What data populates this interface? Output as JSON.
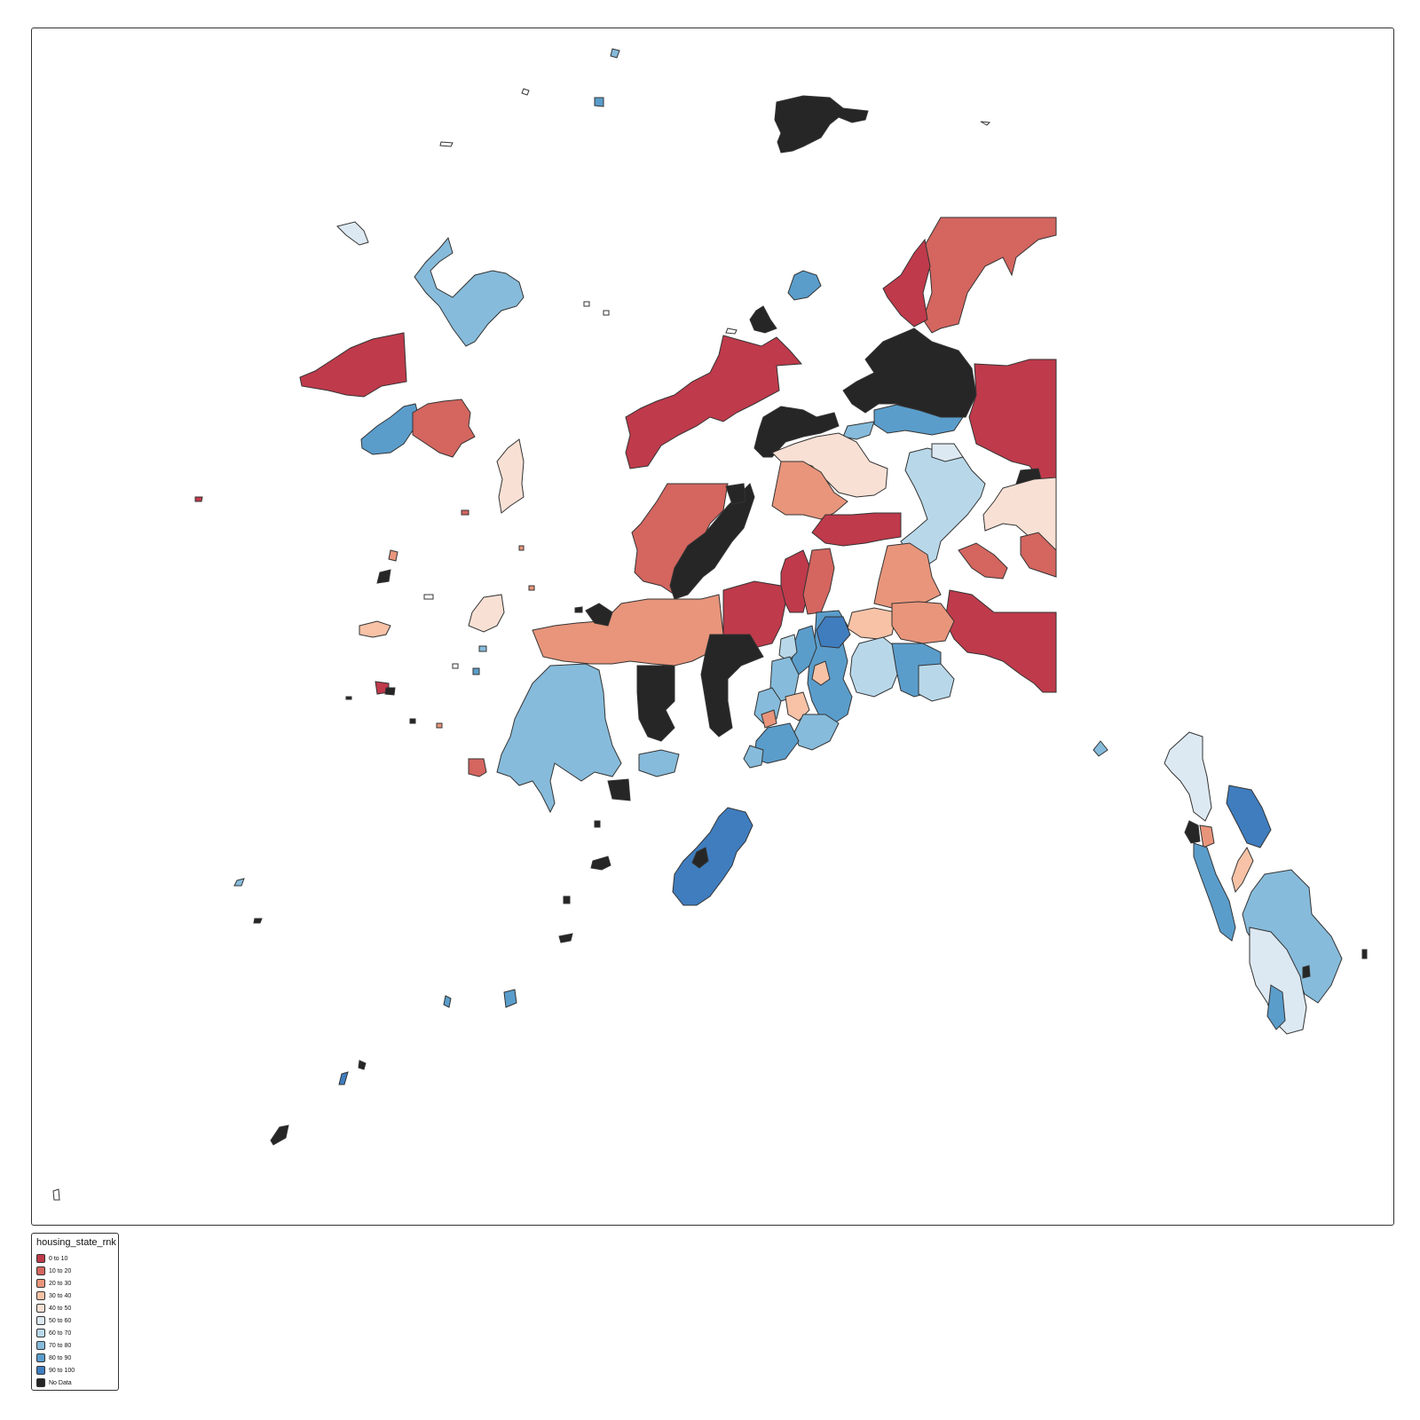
{
  "map": {
    "legend_title": "housing_state_rnk",
    "no_data_color": "#262626",
    "legend": [
      {
        "label": "0 to 10",
        "color": "#bf3a4b"
      },
      {
        "label": "10 to 20",
        "color": "#d4655f"
      },
      {
        "label": "20 to 30",
        "color": "#e8957b"
      },
      {
        "label": "30 to 40",
        "color": "#f7c2a6"
      },
      {
        "label": "40 to 50",
        "color": "#f9e0d4"
      },
      {
        "label": "50 to 60",
        "color": "#dde9f2"
      },
      {
        "label": "60 to 70",
        "color": "#b8d8ea"
      },
      {
        "label": "70 to 80",
        "color": "#86bbdb"
      },
      {
        "label": "80 to 90",
        "color": "#5a9dcb"
      },
      {
        "label": "90 to 100",
        "color": "#3f7dbf"
      },
      {
        "label": "No Data",
        "color": "#262626"
      }
    ]
  }
}
